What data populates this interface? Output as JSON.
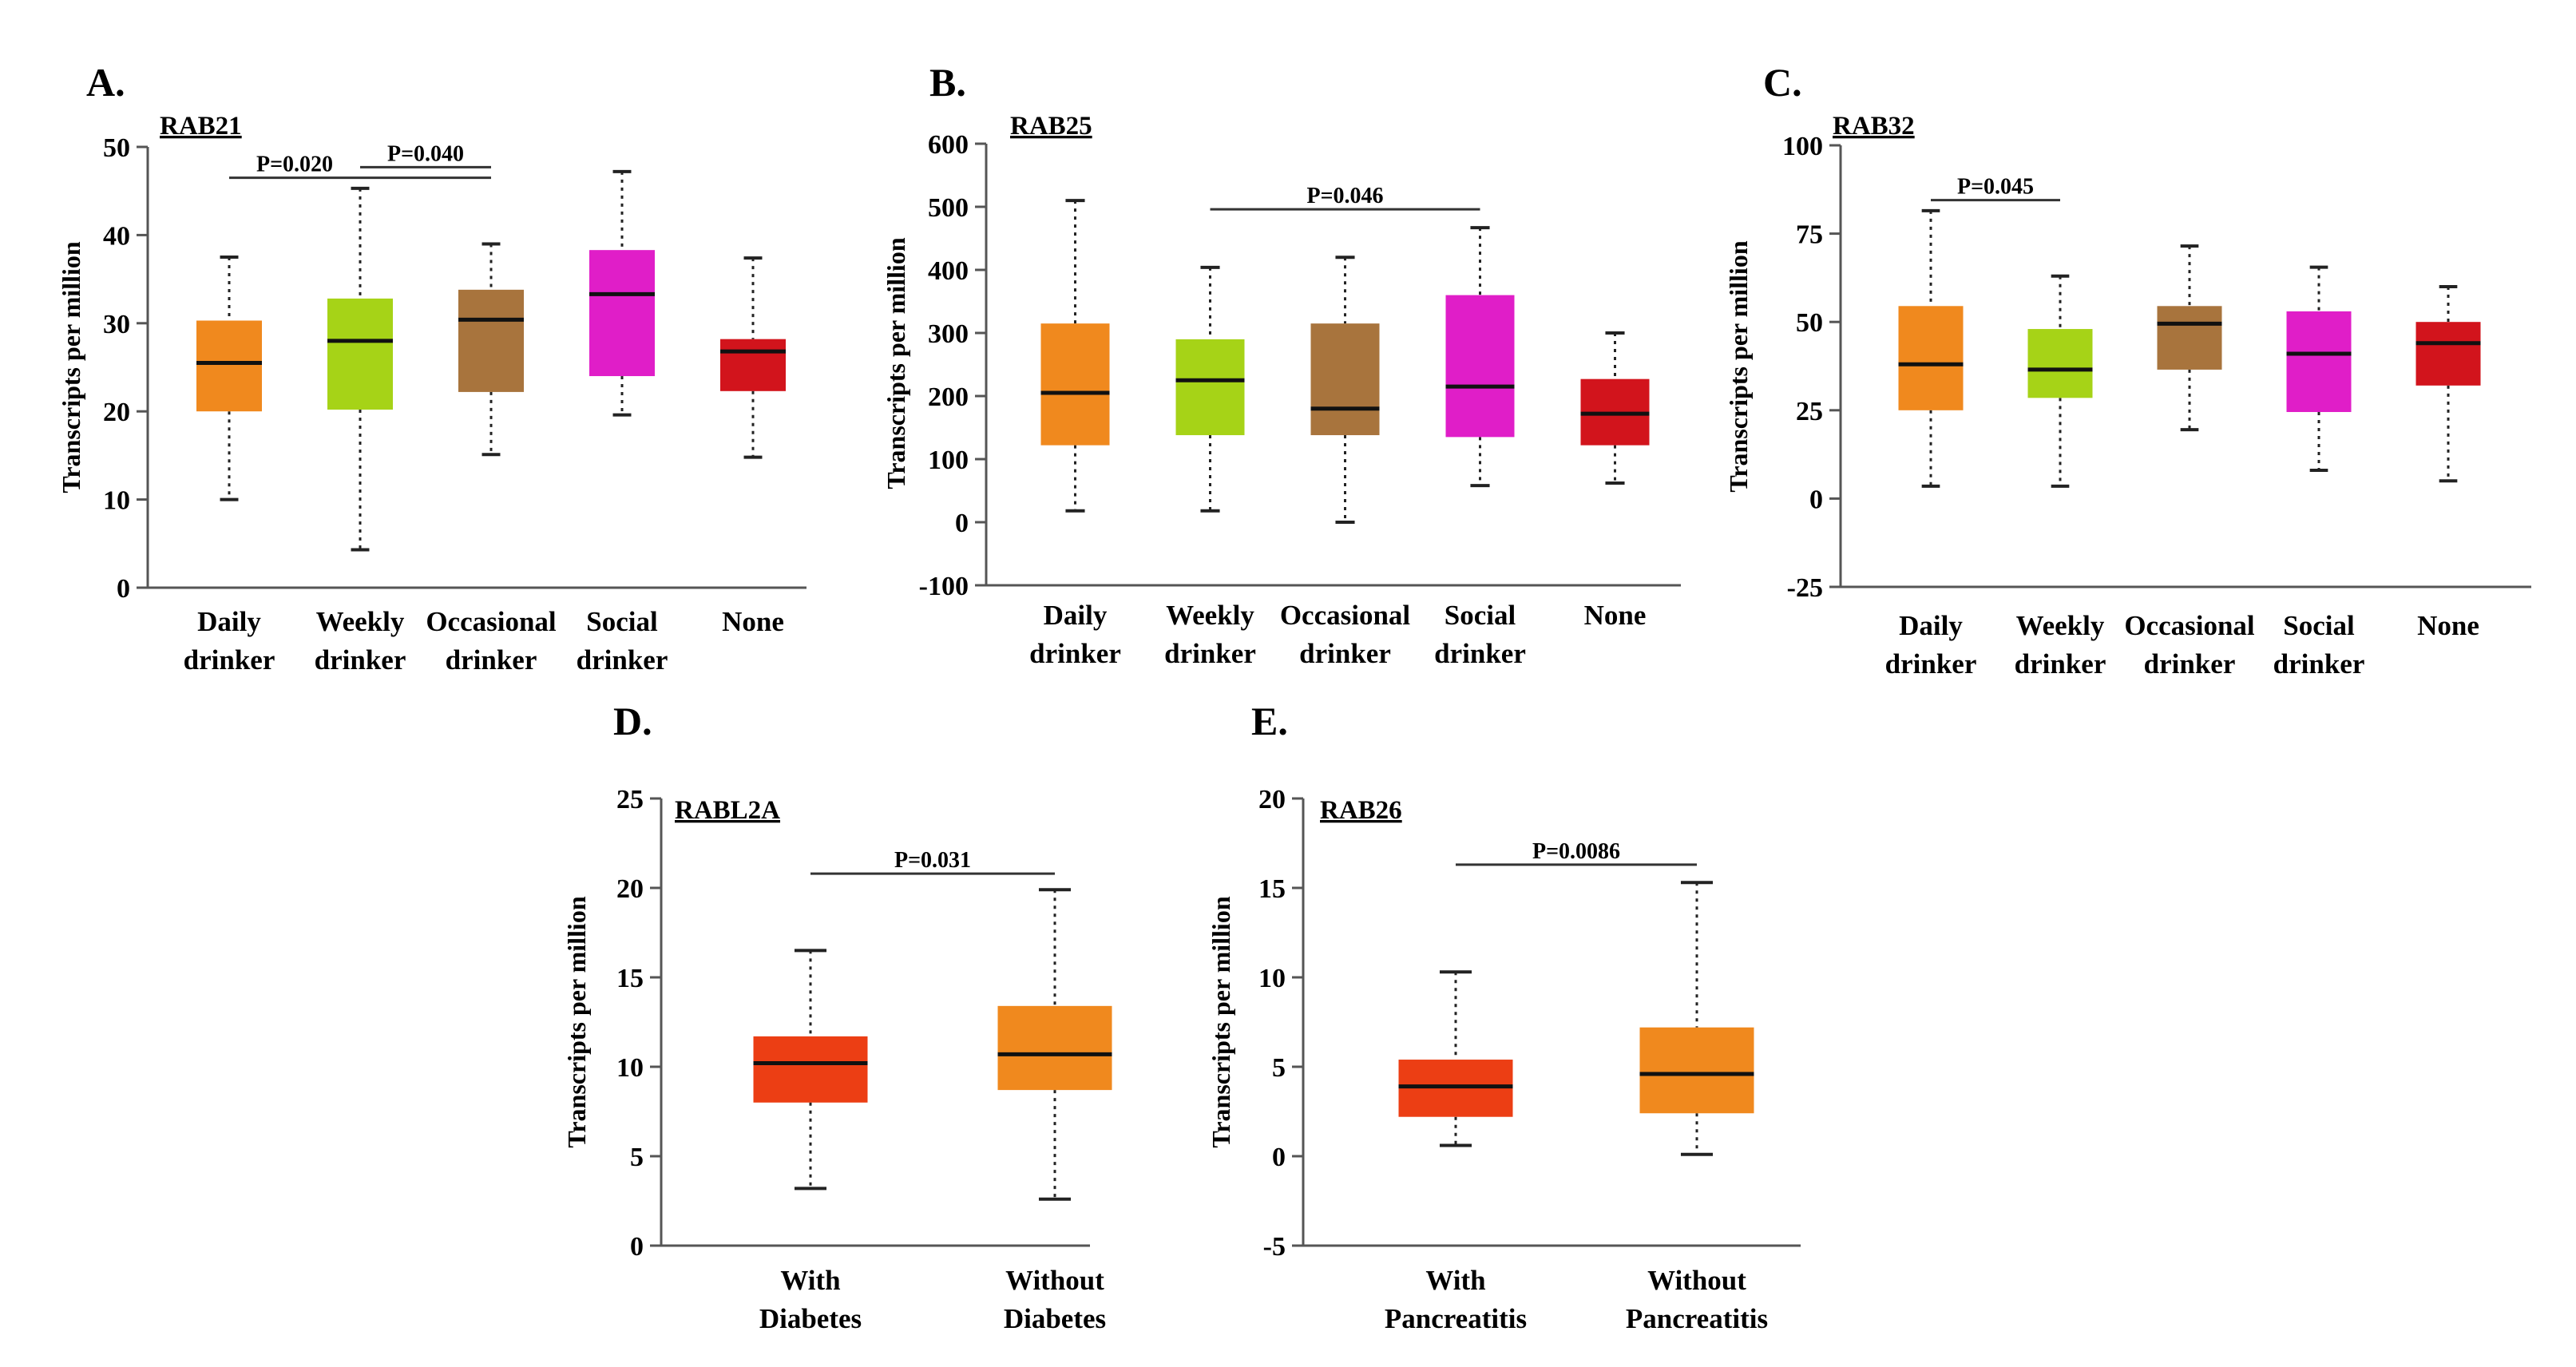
{
  "figure": {
    "background": "#ffffff",
    "colors": {
      "orange": "#f0891e",
      "lime": "#a6d317",
      "brown": "#a8743d",
      "magenta": "#e01ec8",
      "red": "#d2141c",
      "red_orange": "#ec3e14"
    }
  },
  "chart_data": [
    {
      "panel": "A.",
      "type": "box",
      "title": "RAB21",
      "ylabel": "Transcripts  per million",
      "ylim": [
        0,
        50
      ],
      "yticks": [
        0,
        10,
        20,
        30,
        40,
        50
      ],
      "categories": [
        [
          "Daily",
          "drinker"
        ],
        [
          "Weekly",
          "drinker"
        ],
        [
          "Occasional",
          "drinker"
        ],
        [
          "Social",
          "drinker"
        ],
        [
          "None"
        ]
      ],
      "boxes": [
        {
          "min": 10,
          "q1": 20,
          "median": 25.5,
          "q3": 30.3,
          "max": 37.5,
          "color": "#f0891e"
        },
        {
          "min": 4.3,
          "q1": 20.2,
          "median": 28,
          "q3": 32.8,
          "max": 45.3,
          "color": "#a6d317"
        },
        {
          "min": 15.1,
          "q1": 22.2,
          "median": 30.4,
          "q3": 33.8,
          "max": 39,
          "color": "#a8743d"
        },
        {
          "min": 19.6,
          "q1": 24,
          "median": 33.3,
          "q3": 38.3,
          "max": 47.2,
          "color": "#e01ec8"
        },
        {
          "min": 14.8,
          "q1": 22.3,
          "median": 26.8,
          "q3": 28.2,
          "max": 37.4,
          "color": "#d2141c"
        }
      ],
      "comparisons": [
        {
          "from": 0,
          "to": 2,
          "y": 46.5,
          "label": "P=0.020",
          "label_at": 0.25
        },
        {
          "from": 1,
          "to": 2,
          "y": 47.7,
          "label": "P=0.040",
          "label_at": 0.5
        }
      ]
    },
    {
      "panel": "B.",
      "type": "box",
      "title": "RAB25",
      "ylabel": "Transcripts  per million",
      "ylim": [
        -100,
        600
      ],
      "yticks": [
        -100,
        0,
        100,
        200,
        300,
        400,
        500,
        600
      ],
      "categories": [
        [
          "Daily",
          "drinker"
        ],
        [
          "Weekly",
          "drinker"
        ],
        [
          "Occasional",
          "drinker"
        ],
        [
          "Social",
          "drinker"
        ],
        [
          "None"
        ]
      ],
      "boxes": [
        {
          "min": 18,
          "q1": 122,
          "median": 205,
          "q3": 315,
          "max": 510,
          "color": "#f0891e"
        },
        {
          "min": 18,
          "q1": 138,
          "median": 225,
          "q3": 290,
          "max": 404,
          "color": "#a6d317"
        },
        {
          "min": 0,
          "q1": 138,
          "median": 180,
          "q3": 315,
          "max": 420,
          "color": "#a8743d"
        },
        {
          "min": 58,
          "q1": 135,
          "median": 215,
          "q3": 360,
          "max": 467,
          "color": "#e01ec8"
        },
        {
          "min": 62,
          "q1": 122,
          "median": 172,
          "q3": 227,
          "max": 300,
          "color": "#d2141c"
        }
      ],
      "comparisons": [
        {
          "from": 1,
          "to": 3,
          "y": 496,
          "label": "P=0.046",
          "label_at": 0.5
        }
      ]
    },
    {
      "panel": "C.",
      "type": "box",
      "title": "RAB32",
      "ylabel": "Transcripts  per million",
      "ylim": [
        -25,
        100
      ],
      "yticks": [
        -25,
        0,
        25,
        50,
        75,
        100
      ],
      "categories": [
        [
          "Daily",
          "drinker"
        ],
        [
          "Weekly",
          "drinker"
        ],
        [
          "Occasional",
          "drinker"
        ],
        [
          "Social",
          "drinker"
        ],
        [
          "None"
        ]
      ],
      "boxes": [
        {
          "min": 3.5,
          "q1": 25,
          "median": 38,
          "q3": 54.5,
          "max": 81.5,
          "color": "#f0891e"
        },
        {
          "min": 3.5,
          "q1": 28.5,
          "median": 36.5,
          "q3": 48,
          "max": 63,
          "color": "#a6d317"
        },
        {
          "min": 19.5,
          "q1": 36.5,
          "median": 49.5,
          "q3": 54.5,
          "max": 71.5,
          "color": "#a8743d"
        },
        {
          "min": 8,
          "q1": 24.5,
          "median": 41,
          "q3": 53,
          "max": 65.5,
          "color": "#e01ec8"
        },
        {
          "min": 5,
          "q1": 32,
          "median": 44,
          "q3": 50,
          "max": 60,
          "color": "#d2141c"
        }
      ],
      "comparisons": [
        {
          "from": 0,
          "to": 1,
          "y": 84.5,
          "label": "P=0.045",
          "label_at": 0.5
        }
      ]
    },
    {
      "panel": "D.",
      "type": "box",
      "title": "RABL2A",
      "ylabel": "Transcripts  per million",
      "ylim": [
        0,
        25
      ],
      "yticks": [
        0,
        5,
        10,
        15,
        20,
        25
      ],
      "categories": [
        [
          "With",
          "Diabetes"
        ],
        [
          "Without",
          "Diabetes"
        ]
      ],
      "boxes": [
        {
          "min": 3.2,
          "q1": 8,
          "median": 10.2,
          "q3": 11.7,
          "max": 16.5,
          "color": "#ec3e14"
        },
        {
          "min": 2.6,
          "q1": 8.7,
          "median": 10.7,
          "q3": 13.4,
          "max": 19.9,
          "color": "#f0891e"
        }
      ],
      "comparisons": [
        {
          "from": 0,
          "to": 1,
          "y": 20.8,
          "label": "P=0.031",
          "label_at": 0.5
        }
      ]
    },
    {
      "panel": "E.",
      "type": "box",
      "title": "RAB26",
      "ylabel": "Transcripts  per million",
      "ylim": [
        -5,
        20
      ],
      "yticks": [
        -5,
        0,
        5,
        10,
        15,
        20
      ],
      "categories": [
        [
          "With",
          "Pancreatitis"
        ],
        [
          "Without",
          "Pancreatitis"
        ]
      ],
      "boxes": [
        {
          "min": 0.6,
          "q1": 2.2,
          "median": 3.9,
          "q3": 5.4,
          "max": 10.3,
          "color": "#ec3e14"
        },
        {
          "min": 0.1,
          "q1": 2.4,
          "median": 4.6,
          "q3": 7.2,
          "max": 15.3,
          "color": "#f0891e"
        }
      ],
      "comparisons": [
        {
          "from": 0,
          "to": 1,
          "y": 16.3,
          "label": "P=0.0086",
          "label_at": 0.5
        }
      ]
    }
  ]
}
